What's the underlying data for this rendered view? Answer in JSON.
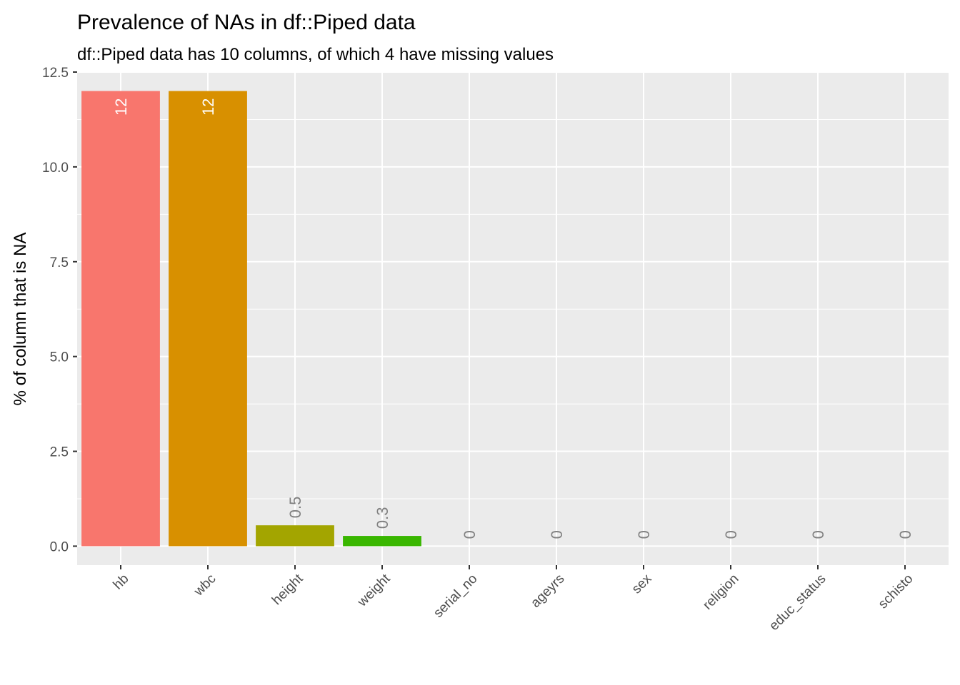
{
  "title": "Prevalence of NAs in df::Piped data",
  "subtitle": "df::Piped data has 10 columns, of which 4 have missing values",
  "chart_data": {
    "type": "bar",
    "title": "Prevalence of NAs in df::Piped data",
    "subtitle": "df::Piped data has 10 columns, of which 4 have missing values",
    "xlabel": "",
    "ylabel": "% of column that is NA",
    "ylim": [
      -0.5,
      12.5
    ],
    "yticks": [
      0.0,
      2.5,
      5.0,
      7.5,
      10.0,
      12.5
    ],
    "ytick_labels": [
      "0.0",
      "2.5",
      "5.0",
      "7.5",
      "10.0",
      "12.5"
    ],
    "grid": true,
    "legend": "none",
    "categories": [
      "hb",
      "wbc",
      "height",
      "weight",
      "serial_no",
      "ageyrs",
      "sex",
      "religion",
      "educ_status",
      "schisto"
    ],
    "values": [
      12,
      12,
      0.55,
      0.27,
      0,
      0,
      0,
      0,
      0,
      0
    ],
    "data_labels": [
      "12",
      "12",
      "0.5",
      "0.3",
      "0",
      "0",
      "0",
      "0",
      "0",
      "0"
    ],
    "colors": [
      "#F8766D",
      "#D89000",
      "#A3A500",
      "#39B600",
      "#00BF7D",
      "#00BFC4",
      "#00B0F6",
      "#9590FF",
      "#E76BF3",
      "#FF62BC"
    ],
    "panel_background": "#EBEBEB",
    "grid_color": "#FFFFFF",
    "inside_label_color": "#FFFFFF",
    "outside_label_color": "#808080"
  }
}
